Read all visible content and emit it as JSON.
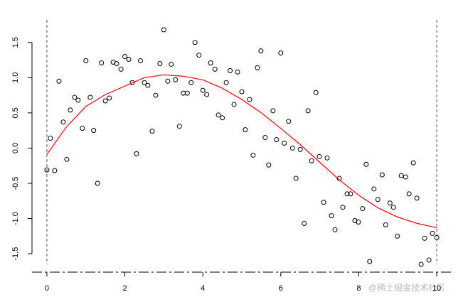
{
  "chart_data": {
    "type": "scatter",
    "x": [
      0,
      0.09,
      0.2,
      0.31,
      0.42,
      0.51,
      0.6,
      0.71,
      0.8,
      0.91,
      1.0,
      1.11,
      1.2,
      1.3,
      1.4,
      1.5,
      1.6,
      1.7,
      1.79,
      1.9,
      2.0,
      2.1,
      2.19,
      2.3,
      2.4,
      2.5,
      2.59,
      2.7,
      2.79,
      2.9,
      3.0,
      3.1,
      3.19,
      3.3,
      3.4,
      3.5,
      3.6,
      3.7,
      3.8,
      3.9,
      4.0,
      4.1,
      4.2,
      4.31,
      4.4,
      4.5,
      4.6,
      4.7,
      4.8,
      4.89,
      5.0,
      5.09,
      5.2,
      5.29,
      5.4,
      5.49,
      5.6,
      5.69,
      5.8,
      5.89,
      6.0,
      6.09,
      6.2,
      6.3,
      6.39,
      6.5,
      6.6,
      6.7,
      6.79,
      6.9,
      6.99,
      7.1,
      7.19,
      7.3,
      7.39,
      7.5,
      7.59,
      7.7,
      7.79,
      7.9,
      7.99,
      8.1,
      8.19,
      8.28,
      8.39,
      8.49,
      8.6,
      8.69,
      8.8,
      8.89,
      8.99,
      9.09,
      9.2,
      9.29,
      9.4,
      9.49,
      9.6,
      9.69,
      9.8,
      9.89,
      10.0
    ],
    "series": [
      {
        "color": "#000000",
        "values": [
          -0.31,
          0.14,
          -0.32,
          0.95,
          0.37,
          -0.16,
          0.54,
          0.72,
          0.68,
          0.28,
          1.24,
          0.72,
          0.25,
          -0.5,
          1.21,
          0.67,
          0.71,
          1.22,
          1.2,
          1.12,
          1.3,
          1.26,
          0.93,
          -0.08,
          1.24,
          0.93,
          0.89,
          0.24,
          0.75,
          1.2,
          1.68,
          0.95,
          1.19,
          0.97,
          0.31,
          0.78,
          0.78,
          0.93,
          1.5,
          1.32,
          0.82,
          0.76,
          1.21,
          1.12,
          0.47,
          0.43,
          0.93,
          1.1,
          0.62,
          1.08,
          0.8,
          0.26,
          0.69,
          -0.1,
          1.14,
          1.38,
          0.15,
          -0.24,
          0.53,
          0.12,
          1.35,
          0.07,
          0.38,
          0.0,
          -0.43,
          -0.02,
          -1.07,
          0.53,
          -0.18,
          0.79,
          -0.12,
          -0.77,
          -0.14,
          -0.96,
          -1.16,
          -0.43,
          -0.84,
          -0.65,
          -0.65,
          -1.03,
          -1.05,
          -0.86,
          -0.23,
          -1.61,
          -0.58,
          -0.73,
          -0.38,
          -1.09,
          -0.78,
          -0.84,
          -1.25,
          -0.39,
          -0.41,
          -0.65,
          -0.21,
          -0.71,
          -1.65,
          -1.28,
          -1.59,
          -1.21,
          -1.27
        ]
      }
    ],
    "fit": {
      "color": "#ff0000",
      "x": [
        0,
        0.5,
        1,
        1.5,
        2,
        2.5,
        3,
        3.5,
        4,
        4.5,
        5,
        5.5,
        6,
        6.5,
        7,
        7.5,
        8,
        8.5,
        9,
        9.5,
        10
      ],
      "values": [
        -0.09,
        0.3,
        0.59,
        0.76,
        0.88,
        1.0,
        1.04,
        1.02,
        0.97,
        0.85,
        0.69,
        0.5,
        0.28,
        0.05,
        -0.2,
        -0.45,
        -0.67,
        -0.85,
        -0.98,
        -1.07,
        -1.13
      ]
    },
    "vlines": [
      0,
      10
    ],
    "xlim": [
      -0.4,
      10.4
    ],
    "ylim": [
      -1.65,
      1.82
    ],
    "xticks": [
      0,
      2,
      4,
      6,
      8,
      10
    ],
    "yticks": [
      -1.5,
      {
        "value": -1.0,
        "label": "-1.0"
      },
      -0.5,
      {
        "value": 0.0,
        "label": "0.0"
      },
      0.5,
      {
        "value": 1.0,
        "label": "1.0"
      },
      1.5
    ],
    "watermark": "@稀土掘金技术社区"
  }
}
